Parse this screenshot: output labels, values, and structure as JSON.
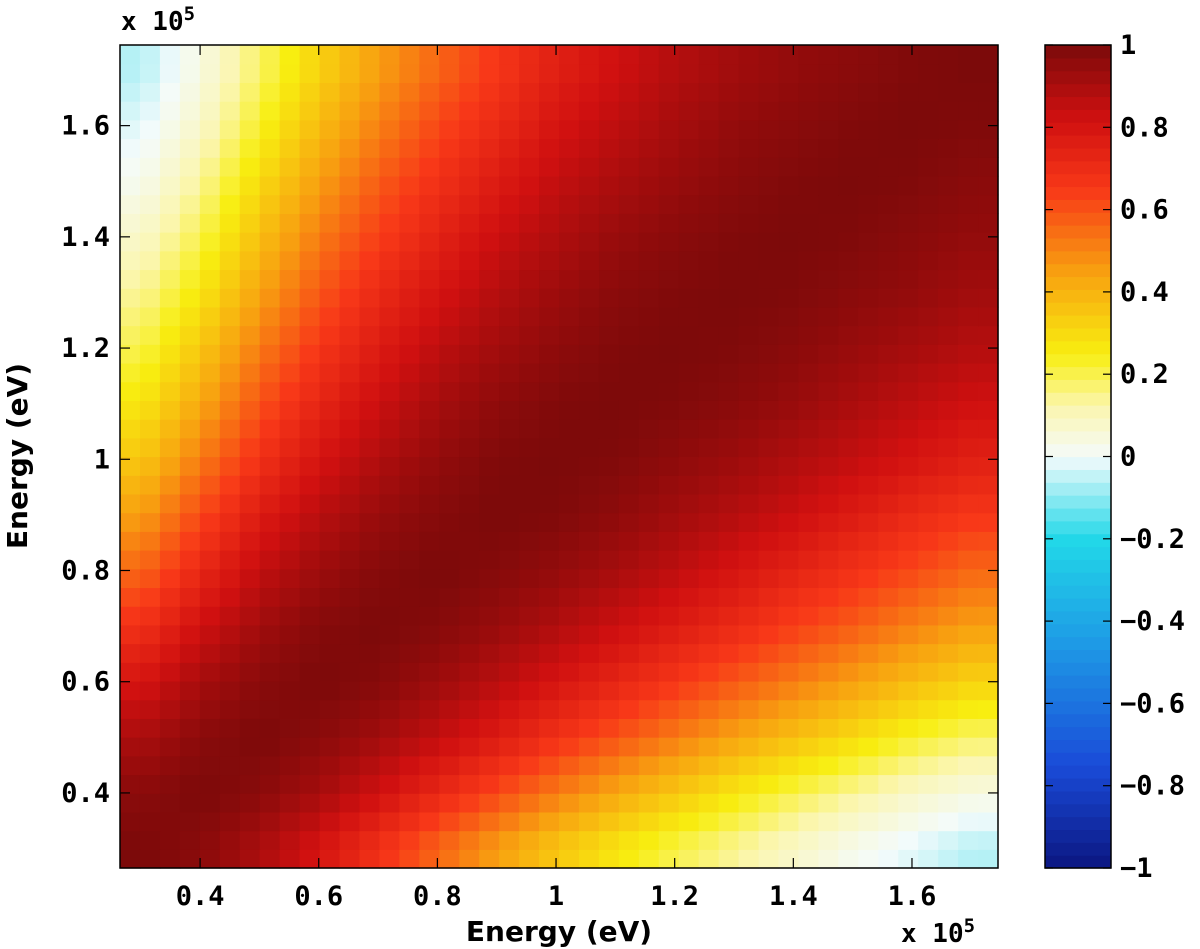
{
  "chart_data": {
    "type": "heatmap",
    "title": "",
    "xlabel": "Energy (eV)",
    "ylabel": "Energy (eV)",
    "x_multiplier": "x 10",
    "y_multiplier": "x 10",
    "multiplier_exponent": "5",
    "xlim": [
      0.265,
      1.745
    ],
    "ylim": [
      0.265,
      1.745
    ],
    "x_ticks": [
      0.4,
      0.6,
      0.8,
      1.0,
      1.2,
      1.4,
      1.6
    ],
    "x_tick_labels": [
      "0.4",
      "0.6",
      "0.8",
      "1",
      "1.2",
      "1.4",
      "1.6"
    ],
    "y_ticks": [
      0.4,
      0.6,
      0.8,
      1.0,
      1.2,
      1.4,
      1.6
    ],
    "y_tick_labels": [
      "0.4",
      "0.6",
      "0.8",
      "1",
      "1.2",
      "1.4",
      "1.6"
    ],
    "grid_centers": [
      0.3,
      0.4,
      0.5,
      0.6,
      0.7,
      0.8,
      0.9,
      1.0,
      1.1,
      1.2,
      1.3,
      1.4,
      1.5,
      1.6,
      1.7
    ],
    "values": [
      [
        1.0,
        0.97,
        0.9,
        0.8,
        0.68,
        0.56,
        0.45,
        0.35,
        0.27,
        0.2,
        0.14,
        0.08,
        0.02,
        -0.02,
        -0.06
      ],
      [
        0.97,
        1.0,
        0.97,
        0.91,
        0.82,
        0.72,
        0.62,
        0.52,
        0.43,
        0.35,
        0.27,
        0.2,
        0.14,
        0.08,
        0.04
      ],
      [
        0.9,
        0.97,
        1.0,
        0.97,
        0.92,
        0.85,
        0.77,
        0.68,
        0.6,
        0.52,
        0.44,
        0.37,
        0.3,
        0.23,
        0.18
      ],
      [
        0.8,
        0.91,
        0.97,
        1.0,
        0.98,
        0.93,
        0.87,
        0.8,
        0.73,
        0.66,
        0.59,
        0.52,
        0.45,
        0.38,
        0.32
      ],
      [
        0.68,
        0.82,
        0.92,
        0.98,
        1.0,
        0.98,
        0.94,
        0.89,
        0.83,
        0.77,
        0.71,
        0.64,
        0.58,
        0.51,
        0.45
      ],
      [
        0.56,
        0.72,
        0.85,
        0.93,
        0.98,
        1.0,
        0.98,
        0.95,
        0.91,
        0.86,
        0.8,
        0.74,
        0.68,
        0.62,
        0.56
      ],
      [
        0.45,
        0.62,
        0.77,
        0.87,
        0.94,
        0.98,
        1.0,
        0.99,
        0.96,
        0.92,
        0.88,
        0.83,
        0.77,
        0.71,
        0.66
      ],
      [
        0.35,
        0.52,
        0.68,
        0.8,
        0.89,
        0.95,
        0.99,
        1.0,
        0.99,
        0.96,
        0.93,
        0.89,
        0.85,
        0.8,
        0.75
      ],
      [
        0.27,
        0.43,
        0.6,
        0.73,
        0.83,
        0.91,
        0.96,
        0.99,
        1.0,
        0.99,
        0.97,
        0.94,
        0.9,
        0.86,
        0.82
      ],
      [
        0.2,
        0.35,
        0.52,
        0.66,
        0.77,
        0.86,
        0.92,
        0.96,
        0.99,
        1.0,
        0.99,
        0.97,
        0.94,
        0.91,
        0.88
      ],
      [
        0.14,
        0.27,
        0.44,
        0.59,
        0.71,
        0.8,
        0.88,
        0.93,
        0.97,
        0.99,
        1.0,
        0.99,
        0.97,
        0.95,
        0.92
      ],
      [
        0.08,
        0.2,
        0.37,
        0.52,
        0.64,
        0.74,
        0.83,
        0.89,
        0.94,
        0.97,
        0.99,
        1.0,
        0.99,
        0.97,
        0.95
      ],
      [
        0.02,
        0.14,
        0.3,
        0.45,
        0.58,
        0.68,
        0.77,
        0.85,
        0.9,
        0.94,
        0.97,
        0.99,
        1.0,
        0.99,
        0.97
      ],
      [
        -0.02,
        0.08,
        0.23,
        0.38,
        0.51,
        0.62,
        0.71,
        0.8,
        0.86,
        0.91,
        0.95,
        0.97,
        0.99,
        1.0,
        0.99
      ],
      [
        -0.06,
        0.04,
        0.18,
        0.32,
        0.45,
        0.56,
        0.66,
        0.75,
        0.82,
        0.88,
        0.92,
        0.95,
        0.97,
        0.99,
        1.0
      ]
    ],
    "colorbar": {
      "range": [
        -1,
        1
      ],
      "ticks": [
        1,
        0.8,
        0.6,
        0.4,
        0.2,
        0,
        -0.2,
        -0.4,
        -0.6,
        -0.8,
        -1
      ],
      "tick_labels": [
        "1",
        "0.8",
        "0.6",
        "0.4",
        "0.2",
        "0",
        "−0.2",
        "−0.4",
        "−0.6",
        "−0.8",
        "−1"
      ],
      "levels": 64
    },
    "colormap": [
      [
        -1.0,
        "#0b1680"
      ],
      [
        -0.75,
        "#1a4bd8"
      ],
      [
        -0.45,
        "#1e9be6"
      ],
      [
        -0.2,
        "#22d8e8"
      ],
      [
        0.0,
        "#f4fbfb"
      ],
      [
        0.12,
        "#fbf6b0"
      ],
      [
        0.25,
        "#f8ee10"
      ],
      [
        0.45,
        "#f8a010"
      ],
      [
        0.65,
        "#f83818"
      ],
      [
        0.82,
        "#d01010"
      ],
      [
        1.0,
        "#7c0a0a"
      ]
    ]
  }
}
